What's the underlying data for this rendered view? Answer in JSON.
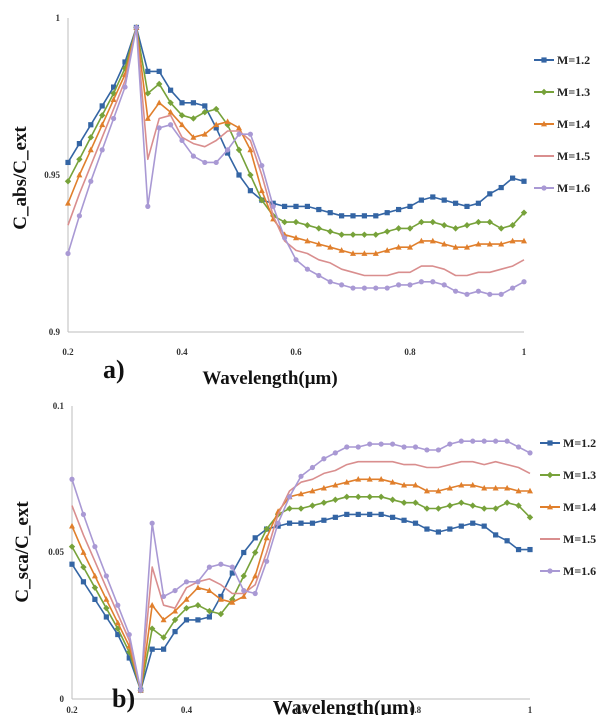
{
  "chart_data": [
    {
      "type": "line",
      "panel_label": "a)",
      "xlabel": "Wavelength(μm)",
      "ylabel": "C_abs/C_ext",
      "xlim": [
        0.2,
        1.0
      ],
      "ylim": [
        0.9,
        1.0
      ],
      "xticks": [
        "0.2",
        "0.4",
        "0.6",
        "0.8",
        "1"
      ],
      "yticks": [
        "0.9",
        "0.95",
        "1"
      ],
      "legend_position": "right",
      "x": [
        0.2,
        0.22,
        0.24,
        0.26,
        0.28,
        0.3,
        0.32,
        0.34,
        0.36,
        0.38,
        0.4,
        0.42,
        0.44,
        0.46,
        0.48,
        0.5,
        0.52,
        0.54,
        0.56,
        0.58,
        0.6,
        0.62,
        0.64,
        0.66,
        0.68,
        0.7,
        0.72,
        0.74,
        0.76,
        0.78,
        0.8,
        0.82,
        0.84,
        0.86,
        0.88,
        0.9,
        0.92,
        0.94,
        0.96,
        0.98,
        1.0
      ],
      "series": [
        {
          "name": "M=1.2",
          "color": "#3465a4",
          "marker": "square",
          "values": [
            0.954,
            0.96,
            0.966,
            0.972,
            0.978,
            0.986,
            0.997,
            0.983,
            0.983,
            0.977,
            0.973,
            0.973,
            0.972,
            0.965,
            0.957,
            0.95,
            0.945,
            0.942,
            0.941,
            0.94,
            0.94,
            0.94,
            0.939,
            0.938,
            0.937,
            0.937,
            0.937,
            0.937,
            0.938,
            0.939,
            0.94,
            0.942,
            0.943,
            0.942,
            0.941,
            0.94,
            0.941,
            0.944,
            0.946,
            0.949,
            0.948
          ]
        },
        {
          "name": "M=1.3",
          "color": "#77a23a",
          "marker": "diamond",
          "values": [
            0.948,
            0.955,
            0.962,
            0.969,
            0.976,
            0.984,
            0.997,
            0.976,
            0.979,
            0.973,
            0.969,
            0.968,
            0.97,
            0.971,
            0.966,
            0.958,
            0.95,
            0.942,
            0.937,
            0.935,
            0.935,
            0.934,
            0.933,
            0.932,
            0.931,
            0.931,
            0.931,
            0.931,
            0.932,
            0.933,
            0.933,
            0.935,
            0.935,
            0.934,
            0.933,
            0.934,
            0.935,
            0.935,
            0.933,
            0.934,
            0.938
          ]
        },
        {
          "name": "M=1.4",
          "color": "#e07f2c",
          "marker": "triangle",
          "values": [
            0.941,
            0.95,
            0.958,
            0.966,
            0.974,
            0.982,
            0.997,
            0.968,
            0.973,
            0.97,
            0.966,
            0.962,
            0.963,
            0.966,
            0.967,
            0.965,
            0.958,
            0.945,
            0.936,
            0.931,
            0.93,
            0.929,
            0.928,
            0.927,
            0.926,
            0.925,
            0.925,
            0.925,
            0.926,
            0.927,
            0.927,
            0.929,
            0.929,
            0.928,
            0.927,
            0.927,
            0.928,
            0.928,
            0.928,
            0.929,
            0.929
          ]
        },
        {
          "name": "M=1.5",
          "color": "#d98e8e",
          "marker": "none",
          "values": [
            0.934,
            0.944,
            0.953,
            0.962,
            0.971,
            0.98,
            0.997,
            0.955,
            0.968,
            0.969,
            0.962,
            0.96,
            0.959,
            0.961,
            0.964,
            0.964,
            0.961,
            0.95,
            0.937,
            0.929,
            0.926,
            0.925,
            0.923,
            0.922,
            0.92,
            0.919,
            0.918,
            0.918,
            0.918,
            0.919,
            0.919,
            0.921,
            0.921,
            0.92,
            0.918,
            0.918,
            0.919,
            0.919,
            0.92,
            0.921,
            0.923
          ]
        },
        {
          "name": "M=1.6",
          "color": "#a999d4",
          "marker": "circle",
          "values": [
            0.925,
            0.937,
            0.948,
            0.958,
            0.968,
            0.978,
            0.997,
            0.94,
            0.965,
            0.966,
            0.961,
            0.956,
            0.954,
            0.954,
            0.958,
            0.963,
            0.963,
            0.953,
            0.94,
            0.93,
            0.923,
            0.92,
            0.918,
            0.916,
            0.915,
            0.914,
            0.914,
            0.914,
            0.914,
            0.915,
            0.915,
            0.916,
            0.916,
            0.915,
            0.913,
            0.912,
            0.913,
            0.912,
            0.912,
            0.914,
            0.916
          ]
        }
      ]
    },
    {
      "type": "line",
      "panel_label": "b)",
      "xlabel": "Wavelength(μm)",
      "ylabel": "C_sca/C_ext",
      "xlim": [
        0.2,
        1.0
      ],
      "ylim": [
        0.0,
        0.1
      ],
      "xticks": [
        "0.2",
        "0.4",
        "0.6",
        "0.8",
        "1"
      ],
      "yticks": [
        "0",
        "0.05",
        "0.1"
      ],
      "legend_position": "right",
      "x": [
        0.2,
        0.22,
        0.24,
        0.26,
        0.28,
        0.3,
        0.32,
        0.34,
        0.36,
        0.38,
        0.4,
        0.42,
        0.44,
        0.46,
        0.48,
        0.5,
        0.52,
        0.54,
        0.56,
        0.58,
        0.6,
        0.62,
        0.64,
        0.66,
        0.68,
        0.7,
        0.72,
        0.74,
        0.76,
        0.78,
        0.8,
        0.82,
        0.84,
        0.86,
        0.88,
        0.9,
        0.92,
        0.94,
        0.96,
        0.98,
        1.0
      ],
      "series": [
        {
          "name": "M=1.2",
          "color": "#3465a4",
          "marker": "square",
          "values": [
            0.046,
            0.04,
            0.034,
            0.028,
            0.022,
            0.014,
            0.003,
            0.017,
            0.017,
            0.023,
            0.027,
            0.027,
            0.028,
            0.035,
            0.043,
            0.05,
            0.055,
            0.058,
            0.059,
            0.06,
            0.06,
            0.06,
            0.061,
            0.062,
            0.063,
            0.063,
            0.063,
            0.063,
            0.062,
            0.061,
            0.06,
            0.058,
            0.057,
            0.058,
            0.059,
            0.06,
            0.059,
            0.056,
            0.054,
            0.051,
            0.051
          ]
        },
        {
          "name": "M=1.3",
          "color": "#77a23a",
          "marker": "diamond",
          "values": [
            0.052,
            0.045,
            0.038,
            0.031,
            0.024,
            0.016,
            0.003,
            0.024,
            0.021,
            0.027,
            0.031,
            0.032,
            0.03,
            0.029,
            0.034,
            0.042,
            0.05,
            0.058,
            0.063,
            0.065,
            0.065,
            0.066,
            0.067,
            0.068,
            0.069,
            0.069,
            0.069,
            0.069,
            0.068,
            0.067,
            0.067,
            0.065,
            0.065,
            0.066,
            0.067,
            0.066,
            0.065,
            0.065,
            0.067,
            0.066,
            0.062
          ]
        },
        {
          "name": "M=1.4",
          "color": "#e07f2c",
          "marker": "triangle",
          "values": [
            0.059,
            0.05,
            0.042,
            0.034,
            0.026,
            0.018,
            0.003,
            0.032,
            0.027,
            0.03,
            0.034,
            0.038,
            0.037,
            0.034,
            0.033,
            0.035,
            0.042,
            0.055,
            0.064,
            0.069,
            0.07,
            0.071,
            0.072,
            0.073,
            0.074,
            0.075,
            0.075,
            0.075,
            0.074,
            0.073,
            0.073,
            0.071,
            0.071,
            0.072,
            0.073,
            0.073,
            0.072,
            0.072,
            0.072,
            0.071,
            0.071
          ]
        },
        {
          "name": "M=1.5",
          "color": "#d98e8e",
          "marker": "none",
          "values": [
            0.066,
            0.056,
            0.047,
            0.038,
            0.029,
            0.02,
            0.003,
            0.045,
            0.032,
            0.031,
            0.038,
            0.04,
            0.041,
            0.039,
            0.036,
            0.036,
            0.039,
            0.05,
            0.063,
            0.071,
            0.074,
            0.075,
            0.077,
            0.078,
            0.08,
            0.081,
            0.081,
            0.081,
            0.081,
            0.08,
            0.08,
            0.079,
            0.079,
            0.08,
            0.081,
            0.081,
            0.08,
            0.081,
            0.08,
            0.079,
            0.077
          ]
        },
        {
          "name": "M=1.6",
          "color": "#a999d4",
          "marker": "circle",
          "values": [
            0.075,
            0.063,
            0.052,
            0.042,
            0.032,
            0.022,
            0.003,
            0.06,
            0.035,
            0.037,
            0.04,
            0.04,
            0.045,
            0.046,
            0.045,
            0.037,
            0.036,
            0.047,
            0.06,
            0.069,
            0.076,
            0.079,
            0.082,
            0.084,
            0.086,
            0.086,
            0.087,
            0.087,
            0.087,
            0.086,
            0.086,
            0.085,
            0.085,
            0.087,
            0.088,
            0.088,
            0.088,
            0.088,
            0.088,
            0.086,
            0.084
          ]
        }
      ]
    }
  ]
}
